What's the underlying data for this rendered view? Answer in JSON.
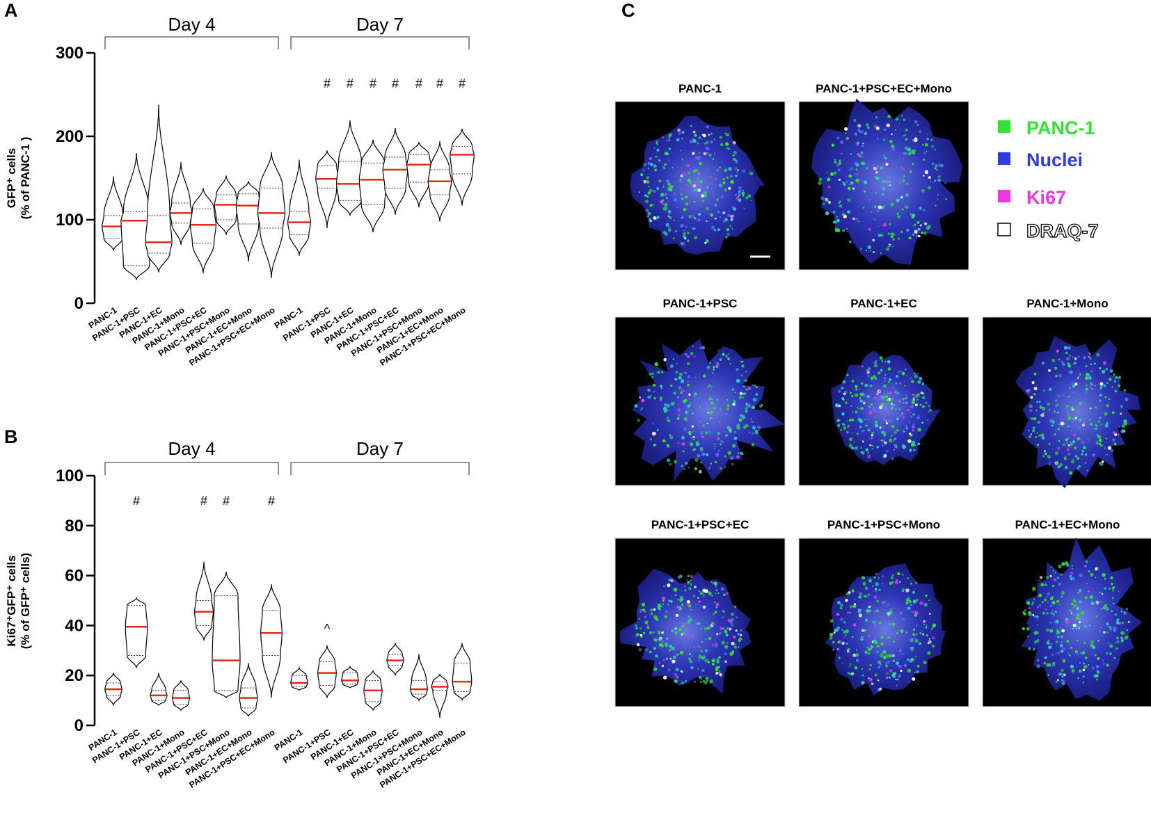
{
  "panel_labels": {
    "a": "A",
    "b": "B",
    "c": "C"
  },
  "colors": {
    "median": "#e8261b",
    "panc1": "#33e233",
    "nuclei": "#2f3de0",
    "ki67": "#e83ae0",
    "draq7": "#ffffff"
  },
  "chart_data": [
    {
      "id": "A",
      "type": "violin",
      "ylabel_line1": "GFP⁺ cells",
      "ylabel_line2": "(% of PANC-1 )",
      "ylim": [
        0,
        300
      ],
      "yticks": [
        "0",
        "100",
        "200",
        "300"
      ],
      "groups": [
        {
          "label": "Day 4",
          "start": 0,
          "end": 7
        },
        {
          "label": "Day 7",
          "start": 8,
          "end": 15
        }
      ],
      "categories": [
        "PANC-1",
        "PANC-1+PSC",
        "PANC-1+EC",
        "PANC-1+Mono",
        "PANC-1+PSC+EC",
        "PANC-1+PSC+Mono",
        "PANC-1+EC+Mono",
        "PANC-1+PSC+EC+Mono",
        "PANC-1",
        "PANC-1+PSC",
        "PANC-1+EC",
        "PANC-1+Mono",
        "PANC-1+PSC+EC",
        "PANC-1+PSC+Mono",
        "PANC-1+EC+Mono",
        "PANC-1+PSC+EC+Mono"
      ],
      "min": [
        63,
        28,
        37,
        70,
        36,
        82,
        50,
        30,
        57,
        90,
        105,
        85,
        106,
        115,
        98,
        117
      ],
      "q1": [
        78,
        45,
        60,
        96,
        72,
        100,
        95,
        90,
        82,
        138,
        123,
        118,
        138,
        145,
        130,
        155
      ],
      "median": [
        92,
        99,
        73,
        108,
        94,
        118,
        117,
        108,
        97,
        149,
        143,
        148,
        160,
        166,
        146,
        178
      ],
      "q3": [
        105,
        110,
        105,
        120,
        113,
        130,
        131,
        138,
        110,
        165,
        170,
        168,
        175,
        178,
        160,
        188
      ],
      "max": [
        152,
        180,
        238,
        169,
        138,
        153,
        146,
        181,
        172,
        183,
        219,
        196,
        210,
        193,
        194,
        209
      ],
      "annotations": [
        "",
        "",
        "",
        "",
        "",
        "",
        "",
        "",
        "",
        "#",
        "#",
        "#",
        "#",
        "#",
        "#",
        "#"
      ]
    },
    {
      "id": "B",
      "type": "violin",
      "ylabel_line1": "Ki67⁺GFP⁺ cells",
      "ylabel_line2": "(% of GFP⁺ cells)",
      "ylim": [
        0,
        100
      ],
      "yticks": [
        "0",
        "20",
        "40",
        "60",
        "80",
        "100"
      ],
      "groups": [
        {
          "label": "Day 4",
          "start": 0,
          "end": 7
        },
        {
          "label": "Day 7",
          "start": 8,
          "end": 15
        }
      ],
      "categories": [
        "PANC-1",
        "PANC-1+PSC",
        "PANC-1+EC",
        "PANC-1+Mono",
        "PANC-1+PSC+EC",
        "PANC-1+PSC+Mono",
        "PANC-1+EC+Mono",
        "PANC-1+PSC+EC+Mono",
        "PANC-1",
        "PANC-1+PSC",
        "PANC-1+EC",
        "PANC-1+Mono",
        "PANC-1+PSC+EC",
        "PANC-1+PSC+Mono",
        "PANC-1+EC+Mono",
        "PANC-1+PSC+EC+Mono"
      ],
      "min": [
        8,
        23,
        8,
        6,
        34,
        11,
        3.5,
        11,
        14,
        11,
        15,
        6,
        20,
        10,
        3,
        10
      ],
      "q1": [
        12,
        28,
        10,
        8.5,
        40,
        14,
        7,
        28,
        15.5,
        16,
        16.5,
        9.5,
        24,
        12.5,
        14,
        13.5
      ],
      "median": [
        14.5,
        39.5,
        12,
        11,
        45.5,
        26,
        11,
        37,
        17,
        21,
        18,
        14,
        26,
        14.5,
        15.5,
        17.5
      ],
      "q3": [
        17,
        48,
        14,
        14,
        50,
        52,
        15,
        46,
        20,
        25.5,
        21,
        18,
        28.5,
        18,
        17.5,
        25
      ],
      "max": [
        21,
        51,
        21,
        18,
        65.5,
        61.5,
        25,
        56.5,
        23,
        32,
        23.5,
        22,
        33,
        28.5,
        20.5,
        33
      ],
      "annotations": [
        "",
        "#",
        "",
        "",
        "#",
        "#",
        "",
        "#",
        "",
        "^",
        "",
        "",
        "",
        "",
        "",
        ""
      ]
    }
  ],
  "panel_c": {
    "images": [
      {
        "title": "PANC-1"
      },
      {
        "title": "PANC-1+PSC+EC+Mono"
      },
      {
        "title": "PANC-1+PSC"
      },
      {
        "title": "PANC-1+EC"
      },
      {
        "title": "PANC-1+Mono"
      },
      {
        "title": "PANC-1+PSC+EC"
      },
      {
        "title": "PANC-1+PSC+Mono"
      },
      {
        "title": "PANC-1+EC+Mono"
      }
    ],
    "legend": [
      {
        "label": "PANC-1",
        "color": "#33e233"
      },
      {
        "label": "Nuclei",
        "color": "#2f3de0"
      },
      {
        "label": "Ki67",
        "color": "#e83ae0"
      },
      {
        "label": "DRAQ-7",
        "color": "#ffffff"
      }
    ]
  }
}
